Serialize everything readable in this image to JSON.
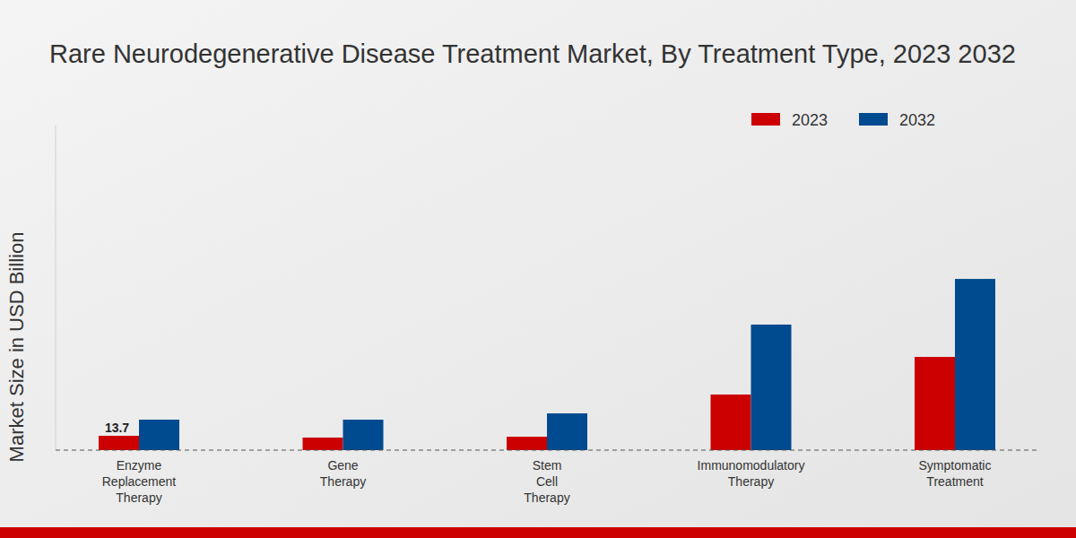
{
  "chart_data": {
    "type": "bar",
    "title": "Rare Neurodegenerative Disease Treatment Market, By Treatment Type, 2023 2032",
    "y_label": "Market Size in USD Billion",
    "categories": [
      "Enzyme Replacement Therapy",
      "Gene Therapy",
      "Stem Cell Therapy",
      "Immunomodulatory Therapy",
      "Symptomatic Treatment"
    ],
    "series": [
      {
        "name": "2023",
        "color": "#cc0000",
        "values": [
          13.7,
          12.0,
          12.8,
          53.1,
          89.0
        ],
        "value_labels": [
          "13.7",
          null,
          null,
          null,
          null
        ]
      },
      {
        "name": "2032",
        "color": "#004a8f",
        "values": [
          29.1,
          29.1,
          35.1,
          119.9,
          163.5
        ]
      }
    ],
    "ylim": [
      0,
      310
    ],
    "grid": false,
    "legend": "top-right",
    "data_labels": true,
    "tick_labels": "x"
  }
}
